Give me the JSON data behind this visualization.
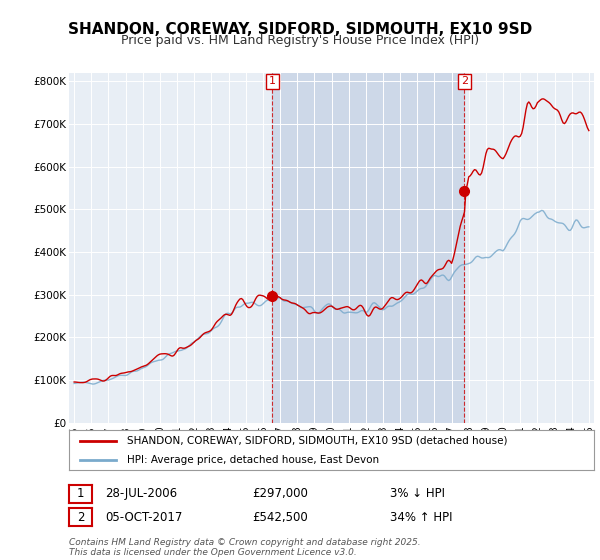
{
  "title": "SHANDON, COREWAY, SIDFORD, SIDMOUTH, EX10 9SD",
  "subtitle": "Price paid vs. HM Land Registry's House Price Index (HPI)",
  "background_color": "#ffffff",
  "plot_bg_color": "#e8eef5",
  "highlight_color": "#cdd8e8",
  "ylim": [
    0,
    820000
  ],
  "xlim_start": 1994.7,
  "xlim_end": 2025.3,
  "sale1": {
    "date_num": 2006.55,
    "price": 297000,
    "label": "1",
    "text": "28-JUL-2006",
    "price_text": "£297,000",
    "hpi_text": "3% ↓ HPI"
  },
  "sale2": {
    "date_num": 2017.75,
    "price": 542500,
    "label": "2",
    "text": "05-OCT-2017",
    "price_text": "£542,500",
    "hpi_text": "34% ↑ HPI"
  },
  "legend_label_red": "SHANDON, COREWAY, SIDFORD, SIDMOUTH, EX10 9SD (detached house)",
  "legend_label_blue": "HPI: Average price, detached house, East Devon",
  "footer": "Contains HM Land Registry data © Crown copyright and database right 2025.\nThis data is licensed under the Open Government Licence v3.0.",
  "red_color": "#cc0000",
  "blue_color": "#7aaacc",
  "title_fontsize": 11,
  "subtitle_fontsize": 9
}
